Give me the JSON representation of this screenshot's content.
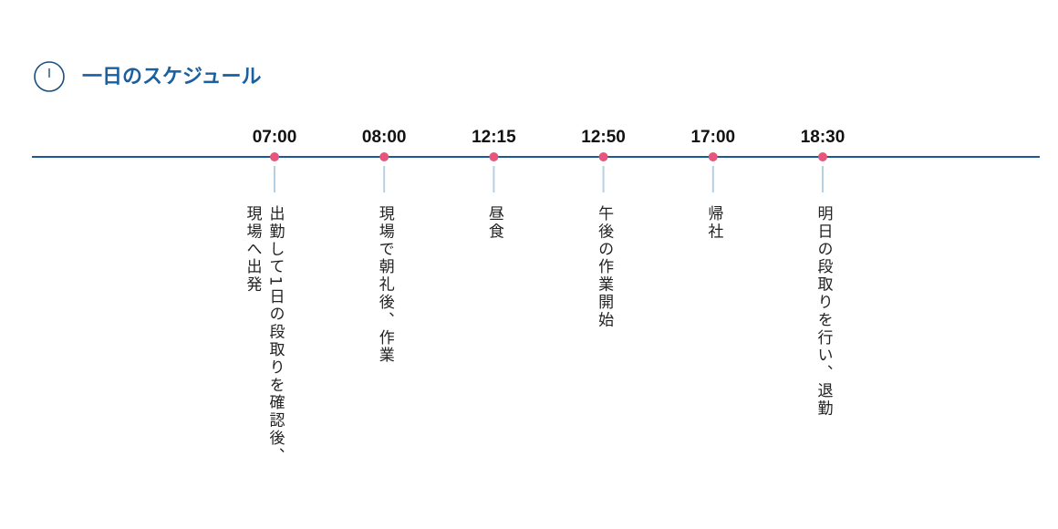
{
  "title": "一日のスケジュール",
  "schedule": [
    {
      "time": "07:00",
      "text": "出勤して1日の段取りを確認後、現場へ出発"
    },
    {
      "time": "08:00",
      "text": "現場で朝礼後、作業"
    },
    {
      "time": "12:15",
      "text": "昼食"
    },
    {
      "time": "12:50",
      "text": "午後の作業開始"
    },
    {
      "time": "17:00",
      "text": "帰社"
    },
    {
      "time": "18:30",
      "text": "明日の段取りを行い、退勤"
    }
  ]
}
